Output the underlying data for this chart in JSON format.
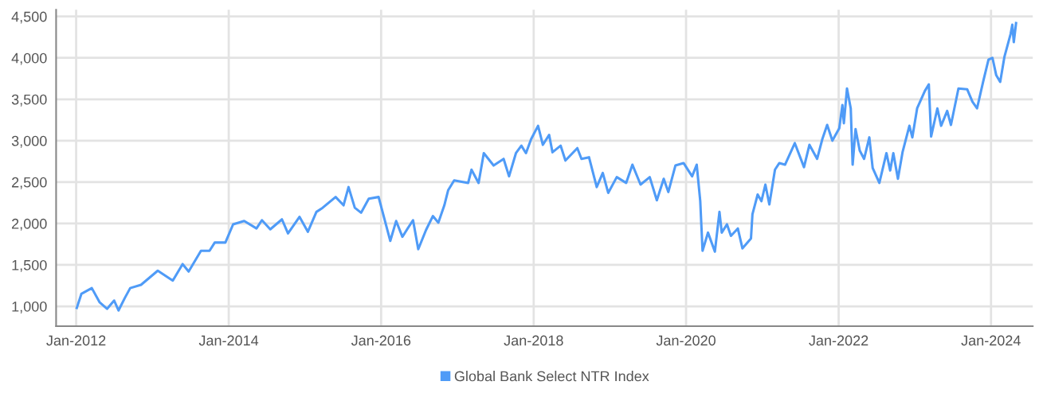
{
  "chart_data": {
    "type": "line",
    "xlim": [
      "2011-09-27",
      "2024-07-19"
    ],
    "xticks": [
      {
        "value": "2012-01-01",
        "label": "Jan-2012"
      },
      {
        "value": "2014-01-01",
        "label": "Jan-2014"
      },
      {
        "value": "2016-01-01",
        "label": "Jan-2016"
      },
      {
        "value": "2018-01-01",
        "label": "Jan-2018"
      },
      {
        "value": "2020-01-01",
        "label": "Jan-2020"
      },
      {
        "value": "2022-01-01",
        "label": "Jan-2022"
      },
      {
        "value": "2024-01-01",
        "label": "Jan-2024"
      }
    ],
    "ylim": [
      760,
      4580
    ],
    "yticks": [
      {
        "value": 1000,
        "label": "1,000"
      },
      {
        "value": 1500,
        "label": "1,500"
      },
      {
        "value": 2000,
        "label": "2,000"
      },
      {
        "value": 2500,
        "label": "2,500"
      },
      {
        "value": 3000,
        "label": "3,000"
      },
      {
        "value": 3500,
        "label": "3,500"
      },
      {
        "value": 4000,
        "label": "4,000"
      },
      {
        "value": 4500,
        "label": "4,500"
      }
    ],
    "grid": true,
    "legend": "bottom",
    "marker": "none",
    "line_style": "solid",
    "series": [
      {
        "name": "Global Bank Select NTR Index",
        "color": "#4f9bf7",
        "x": [
          "2012-01-04",
          "2012-01-26",
          "2012-03-16",
          "2012-04-22",
          "2012-05-28",
          "2012-07-01",
          "2012-07-22",
          "2012-08-21",
          "2012-09-16",
          "2012-11-07",
          "2013-01-26",
          "2013-04-08",
          "2013-05-25",
          "2013-06-23",
          "2013-08-21",
          "2013-10-01",
          "2013-10-26",
          "2013-12-16",
          "2014-01-22",
          "2014-03-16",
          "2014-05-14",
          "2014-06-09",
          "2014-07-19",
          "2014-09-13",
          "2014-10-12",
          "2014-12-06",
          "2015-01-15",
          "2015-02-25",
          "2015-03-27",
          "2015-05-28",
          "2015-07-05",
          "2015-07-29",
          "2015-08-28",
          "2015-09-27",
          "2015-11-03",
          "2015-12-20",
          "2016-02-14",
          "2016-03-13",
          "2016-04-12",
          "2016-06-02",
          "2016-06-27",
          "2016-08-03",
          "2016-09-05",
          "2016-10-01",
          "2016-10-30",
          "2016-11-17",
          "2016-12-16",
          "2017-02-21",
          "2017-03-09",
          "2017-04-12",
          "2017-05-07",
          "2017-06-23",
          "2017-08-10",
          "2017-09-05",
          "2017-10-08",
          "2017-11-03",
          "2017-11-25",
          "2017-12-20",
          "2018-01-22",
          "2018-02-14",
          "2018-03-16",
          "2018-04-01",
          "2018-05-10",
          "2018-06-02",
          "2018-07-29",
          "2018-08-18",
          "2018-09-23",
          "2018-10-30",
          "2018-11-28",
          "2018-12-24",
          "2019-02-03",
          "2019-03-20",
          "2019-04-19",
          "2019-05-28",
          "2019-07-11",
          "2019-08-14",
          "2019-09-16",
          "2019-10-08",
          "2019-11-11",
          "2019-12-20",
          "2020-01-30",
          "2020-02-21",
          "2020-03-09",
          "2020-03-20",
          "2020-04-15",
          "2020-05-18",
          "2020-06-09",
          "2020-06-20",
          "2020-07-15",
          "2020-08-03",
          "2020-09-05",
          "2020-09-27",
          "2020-11-07",
          "2020-11-14",
          "2020-12-09",
          "2020-12-27",
          "2021-01-15",
          "2021-02-03",
          "2021-03-02",
          "2021-03-23",
          "2021-04-19",
          "2021-06-05",
          "2021-07-19",
          "2021-08-14",
          "2021-09-20",
          "2021-10-15",
          "2021-11-07",
          "2021-12-02",
          "2022-01-04",
          "2022-01-19",
          "2022-01-26",
          "2022-02-10",
          "2022-02-28",
          "2022-03-09",
          "2022-03-23",
          "2022-04-12",
          "2022-05-03",
          "2022-05-28",
          "2022-06-13",
          "2022-07-15",
          "2022-08-18",
          "2022-09-05",
          "2022-09-20",
          "2022-10-12",
          "2022-11-03",
          "2022-12-06",
          "2022-12-20",
          "2023-01-12",
          "2023-02-18",
          "2023-03-09",
          "2023-03-20",
          "2023-04-19",
          "2023-05-07",
          "2023-06-05",
          "2023-06-23",
          "2023-07-29",
          "2023-09-09",
          "2023-10-04",
          "2023-10-26",
          "2023-11-25",
          "2023-12-20",
          "2024-01-08",
          "2024-01-26",
          "2024-02-14",
          "2024-03-05",
          "2024-04-04",
          "2024-04-12",
          "2024-04-19",
          "2024-04-30"
        ],
        "values": [
          980,
          1150,
          1220,
          1050,
          970,
          1070,
          950,
          1100,
          1220,
          1260,
          1430,
          1310,
          1510,
          1420,
          1670,
          1670,
          1770,
          1770,
          1990,
          2030,
          1940,
          2040,
          1930,
          2050,
          1880,
          2080,
          1900,
          2140,
          2190,
          2320,
          2220,
          2440,
          2190,
          2130,
          2300,
          2320,
          1790,
          2030,
          1840,
          2040,
          1690,
          1920,
          2090,
          2010,
          2220,
          2400,
          2520,
          2490,
          2650,
          2490,
          2850,
          2700,
          2780,
          2570,
          2850,
          2940,
          2850,
          3020,
          3180,
          2950,
          3070,
          2860,
          2940,
          2760,
          2910,
          2780,
          2800,
          2440,
          2610,
          2370,
          2560,
          2490,
          2710,
          2470,
          2560,
          2280,
          2540,
          2380,
          2700,
          2730,
          2570,
          2710,
          2270,
          1670,
          1890,
          1660,
          2140,
          1890,
          1990,
          1850,
          1940,
          1700,
          1820,
          2110,
          2350,
          2270,
          2470,
          2230,
          2650,
          2730,
          2710,
          2970,
          2680,
          2950,
          2780,
          3020,
          3190,
          3000,
          3150,
          3430,
          3210,
          3630,
          3390,
          2710,
          3140,
          2880,
          2780,
          3040,
          2670,
          2490,
          2850,
          2640,
          2850,
          2540,
          2860,
          3180,
          3040,
          3390,
          3600,
          3680,
          3050,
          3390,
          3180,
          3360,
          3190,
          3630,
          3620,
          3470,
          3390,
          3720,
          3980,
          4000,
          3790,
          3710,
          4010,
          4290,
          4400,
          4190,
          4420
        ]
      }
    ]
  }
}
